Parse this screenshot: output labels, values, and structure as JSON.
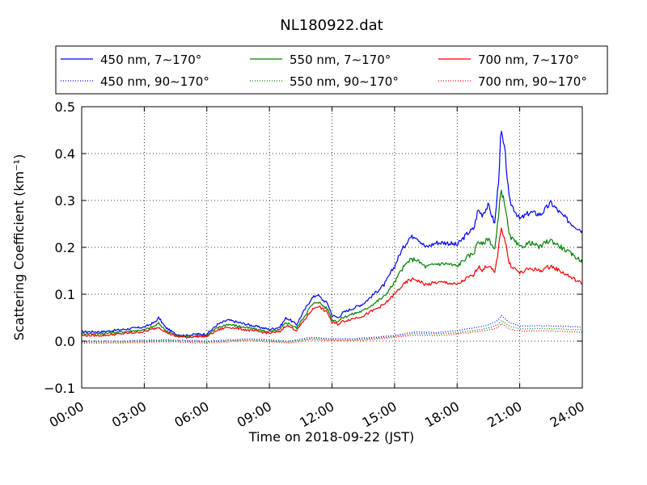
{
  "chart_data": {
    "type": "line",
    "title": "NL180922.dat",
    "xlabel": "Time on 2018-09-22 (JST)",
    "ylabel": "Scattering Coefficient (km⁻¹)",
    "xlim": [
      0,
      24
    ],
    "ylim": [
      -0.1,
      0.5
    ],
    "grid": true,
    "legend_position": "top",
    "x_ticks": [
      0,
      3,
      6,
      9,
      12,
      15,
      18,
      21,
      24
    ],
    "x_tick_labels": [
      "00:00",
      "03:00",
      "06:00",
      "09:00",
      "12:00",
      "15:00",
      "18:00",
      "21:00",
      "24:00"
    ],
    "y_ticks": [
      -0.1,
      0.0,
      0.1,
      0.2,
      0.3,
      0.4,
      0.5
    ],
    "y_tick_labels": [
      "−0.1",
      "0.0",
      "0.1",
      "0.2",
      "0.3",
      "0.4",
      "0.5"
    ],
    "series": [
      {
        "name": "450 nm, 7∼170°",
        "color": "#0000ff",
        "style": "solid",
        "x": [
          0,
          1,
          2,
          3,
          3.5,
          3.7,
          4,
          4.5,
          5,
          5.5,
          6,
          6.5,
          7,
          7.5,
          8,
          8.5,
          9,
          9.5,
          9.8,
          10,
          10.3,
          10.6,
          11,
          11.3,
          11.5,
          11.8,
          12,
          12.3,
          12.5,
          13,
          13.5,
          14,
          14.5,
          15,
          15.3,
          15.7,
          16,
          16.5,
          17,
          17.5,
          18,
          18.5,
          18.8,
          19,
          19.2,
          19.5,
          19.8,
          20,
          20.1,
          20.3,
          20.5,
          21,
          21.5,
          22,
          22.2,
          22.5,
          23,
          23.5,
          24
        ],
        "y": [
          0.02,
          0.02,
          0.025,
          0.03,
          0.04,
          0.05,
          0.03,
          0.015,
          0.012,
          0.015,
          0.015,
          0.035,
          0.045,
          0.04,
          0.035,
          0.03,
          0.025,
          0.03,
          0.05,
          0.045,
          0.035,
          0.06,
          0.09,
          0.1,
          0.09,
          0.08,
          0.055,
          0.05,
          0.06,
          0.07,
          0.08,
          0.1,
          0.12,
          0.16,
          0.19,
          0.22,
          0.225,
          0.2,
          0.21,
          0.21,
          0.205,
          0.23,
          0.24,
          0.28,
          0.27,
          0.29,
          0.25,
          0.35,
          0.45,
          0.4,
          0.3,
          0.26,
          0.275,
          0.27,
          0.28,
          0.295,
          0.27,
          0.25,
          0.235
        ]
      },
      {
        "name": "550 nm, 7∼170°",
        "color": "#008000",
        "style": "solid",
        "x": [
          0,
          1,
          2,
          3,
          3.5,
          3.7,
          4,
          4.5,
          5,
          5.5,
          6,
          6.5,
          7,
          7.5,
          8,
          8.5,
          9,
          9.5,
          9.8,
          10,
          10.3,
          10.6,
          11,
          11.3,
          11.5,
          11.8,
          12,
          12.3,
          12.5,
          13,
          13.5,
          14,
          14.5,
          15,
          15.3,
          15.7,
          16,
          16.5,
          17,
          17.5,
          18,
          18.5,
          18.8,
          19,
          19.2,
          19.5,
          19.8,
          20,
          20.1,
          20.3,
          20.5,
          21,
          21.5,
          22,
          22.2,
          22.5,
          23,
          23.5,
          24
        ],
        "y": [
          0.016,
          0.016,
          0.02,
          0.024,
          0.032,
          0.038,
          0.024,
          0.012,
          0.01,
          0.012,
          0.012,
          0.028,
          0.036,
          0.032,
          0.028,
          0.024,
          0.02,
          0.024,
          0.04,
          0.036,
          0.028,
          0.048,
          0.075,
          0.085,
          0.078,
          0.068,
          0.046,
          0.042,
          0.05,
          0.058,
          0.065,
          0.08,
          0.095,
          0.125,
          0.15,
          0.172,
          0.175,
          0.158,
          0.165,
          0.165,
          0.16,
          0.18,
          0.188,
          0.215,
          0.205,
          0.22,
          0.195,
          0.27,
          0.325,
          0.29,
          0.225,
          0.2,
          0.21,
          0.2,
          0.21,
          0.215,
          0.2,
          0.185,
          0.17
        ]
      },
      {
        "name": "700 nm, 7∼170°",
        "color": "#ff0000",
        "style": "solid",
        "x": [
          0,
          1,
          2,
          3,
          3.5,
          3.7,
          4,
          4.5,
          5,
          5.5,
          6,
          6.5,
          7,
          7.5,
          8,
          8.5,
          9,
          9.5,
          9.8,
          10,
          10.3,
          10.6,
          11,
          11.3,
          11.5,
          11.8,
          12,
          12.3,
          12.5,
          13,
          13.5,
          14,
          14.5,
          15,
          15.3,
          15.7,
          16,
          16.5,
          17,
          17.5,
          18,
          18.5,
          18.8,
          19,
          19.2,
          19.5,
          19.8,
          20,
          20.1,
          20.3,
          20.5,
          21,
          21.5,
          22,
          22.2,
          22.5,
          23,
          23.5,
          24
        ],
        "y": [
          0.012,
          0.012,
          0.016,
          0.02,
          0.027,
          0.03,
          0.02,
          0.01,
          0.008,
          0.01,
          0.01,
          0.023,
          0.03,
          0.027,
          0.023,
          0.02,
          0.017,
          0.02,
          0.034,
          0.03,
          0.023,
          0.04,
          0.065,
          0.075,
          0.07,
          0.06,
          0.04,
          0.036,
          0.042,
          0.048,
          0.054,
          0.066,
          0.078,
          0.1,
          0.115,
          0.13,
          0.132,
          0.12,
          0.125,
          0.125,
          0.12,
          0.135,
          0.14,
          0.16,
          0.152,
          0.162,
          0.145,
          0.2,
          0.245,
          0.215,
          0.165,
          0.145,
          0.155,
          0.15,
          0.155,
          0.16,
          0.148,
          0.135,
          0.122
        ]
      },
      {
        "name": "450 nm, 90∼170°",
        "color": "#0000ff",
        "style": "dotted",
        "x": [
          0,
          2,
          4,
          6,
          8,
          10,
          11,
          12,
          13,
          14,
          15,
          16,
          17,
          18,
          19,
          19.5,
          20,
          20.1,
          20.5,
          21,
          22,
          23,
          24
        ],
        "y": [
          0.0,
          0.0,
          0.003,
          0.0,
          0.005,
          0.0,
          0.008,
          0.005,
          0.005,
          0.008,
          0.012,
          0.02,
          0.018,
          0.022,
          0.03,
          0.035,
          0.045,
          0.055,
          0.04,
          0.032,
          0.033,
          0.032,
          0.03
        ]
      },
      {
        "name": "550 nm, 90∼170°",
        "color": "#008000",
        "style": "dotted",
        "x": [
          0,
          2,
          4,
          6,
          8,
          10,
          11,
          12,
          13,
          14,
          15,
          16,
          17,
          18,
          19,
          19.5,
          20,
          20.1,
          20.5,
          21,
          22,
          23,
          24
        ],
        "y": [
          -0.002,
          -0.002,
          0.001,
          -0.002,
          0.003,
          -0.002,
          0.006,
          0.003,
          0.003,
          0.006,
          0.01,
          0.016,
          0.015,
          0.018,
          0.024,
          0.028,
          0.036,
          0.045,
          0.032,
          0.026,
          0.027,
          0.026,
          0.024
        ]
      },
      {
        "name": "700 nm, 90∼170°",
        "color": "#ff0000",
        "style": "dotted",
        "x": [
          0,
          2,
          4,
          6,
          8,
          10,
          11,
          12,
          13,
          14,
          15,
          16,
          17,
          18,
          19,
          19.5,
          20,
          20.1,
          20.5,
          21,
          22,
          23,
          24
        ],
        "y": [
          -0.004,
          -0.004,
          -0.001,
          -0.004,
          0.001,
          -0.004,
          0.004,
          0.001,
          0.001,
          0.004,
          0.008,
          0.013,
          0.012,
          0.015,
          0.02,
          0.023,
          0.03,
          0.038,
          0.026,
          0.021,
          0.022,
          0.021,
          0.019
        ]
      }
    ],
    "legend_order": [
      0,
      1,
      2,
      3,
      4,
      5
    ]
  }
}
